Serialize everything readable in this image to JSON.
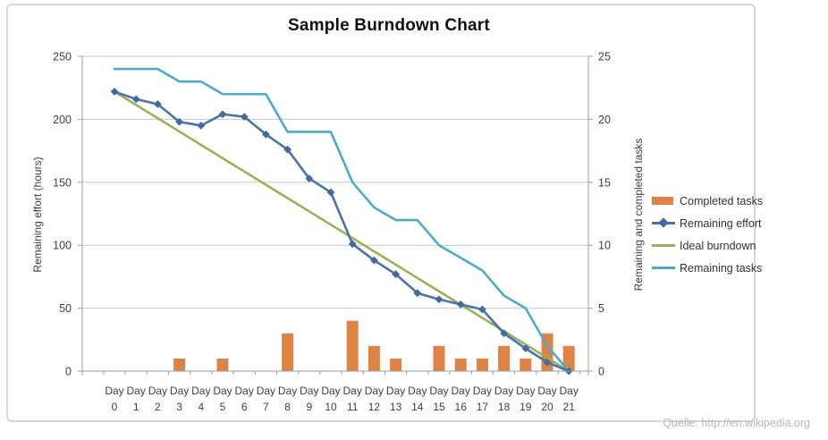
{
  "chart": {
    "title": "Sample Burndown Chart",
    "source_note": "Quelle: http://en.wikipedia.org"
  },
  "chart_data": {
    "type": "combo",
    "title": "Sample Burndown Chart",
    "categories": [
      "Day 0",
      "Day 1",
      "Day 2",
      "Day 3",
      "Day 4",
      "Day 5",
      "Day 6",
      "Day 7",
      "Day 8",
      "Day 9",
      "Day 10",
      "Day 11",
      "Day 12",
      "Day 13",
      "Day 14",
      "Day 15",
      "Day 16",
      "Day 17",
      "Day 18",
      "Day 19",
      "Day 20",
      "Day 21"
    ],
    "category_word": "Day",
    "category_numbers": [
      "0",
      "1",
      "2",
      "3",
      "4",
      "5",
      "6",
      "7",
      "8",
      "9",
      "10",
      "11",
      "12",
      "13",
      "14",
      "15",
      "16",
      "17",
      "18",
      "19",
      "20",
      "21"
    ],
    "left_axis": {
      "title": "Remaining effort (hours)",
      "min": 0,
      "max": 250,
      "tick_step": 50,
      "ticks": [
        0,
        50,
        100,
        150,
        200,
        250
      ]
    },
    "right_axis": {
      "title": "Remaining and completed tasks",
      "min": 0,
      "max": 25,
      "tick_step": 5,
      "ticks": [
        0,
        5,
        10,
        15,
        20,
        25
      ]
    },
    "grid": true,
    "legend_position": "right",
    "series": [
      {
        "name": "Completed tasks",
        "type": "bar",
        "axis": "right",
        "color": "#DE8344",
        "values": [
          0,
          0,
          0,
          1,
          0,
          1,
          0,
          0,
          3,
          0,
          0,
          4,
          2,
          1,
          0,
          2,
          1,
          1,
          2,
          1,
          3,
          2
        ]
      },
      {
        "name": "Remaining effort",
        "type": "line",
        "axis": "left",
        "color": "#4A73AE",
        "marker": "diamond",
        "marker_color": "#44699F",
        "values": [
          222,
          216,
          212,
          198,
          195,
          204,
          202,
          188,
          176,
          153,
          142,
          101,
          88,
          77,
          62,
          57,
          53,
          49,
          30,
          18,
          7,
          0
        ]
      },
      {
        "name": "Ideal burndown",
        "type": "line",
        "axis": "left",
        "color": "#97B354",
        "values": [
          222,
          211.4,
          200.9,
          190.3,
          179.7,
          169.1,
          158.6,
          148.0,
          137.4,
          126.9,
          116.3,
          105.7,
          95.1,
          84.6,
          74.0,
          63.4,
          52.9,
          42.3,
          31.7,
          21.1,
          10.6,
          0
        ]
      },
      {
        "name": "Remaining tasks",
        "type": "line",
        "axis": "right",
        "color": "#4BACC6",
        "values": [
          24,
          24,
          24,
          23,
          23,
          22,
          22,
          22,
          19,
          19,
          19,
          15,
          13,
          12,
          12,
          10,
          9,
          8,
          6,
          5,
          2,
          0
        ]
      }
    ],
    "colors": {
      "gridline": "#c9c9c9",
      "axis_line": "#9e9e9e",
      "tick_label": "#3f3f3f",
      "frame_border": "#d7d7d7",
      "source_note": "#b5b5c9"
    }
  }
}
